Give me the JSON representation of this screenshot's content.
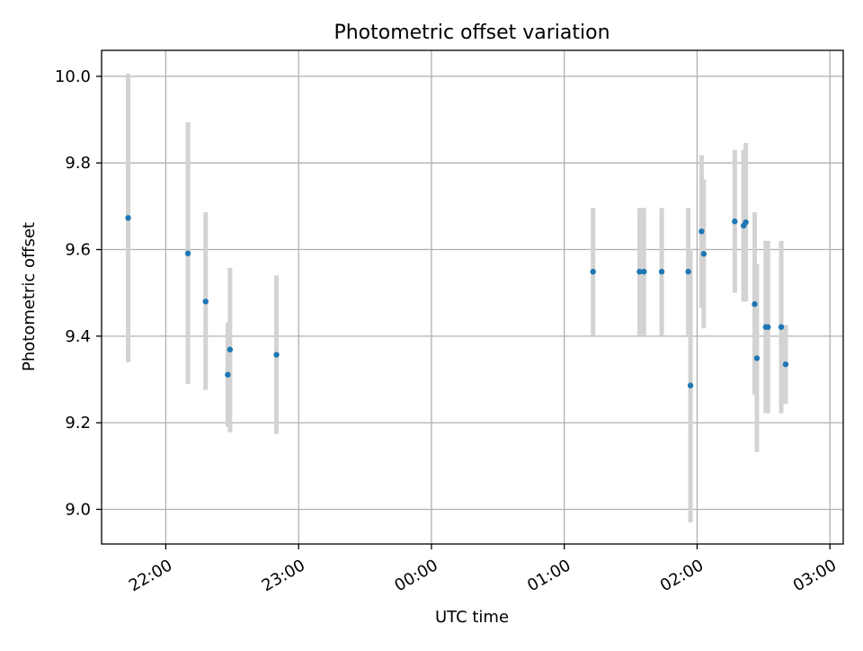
{
  "chart_data": {
    "type": "scatter",
    "title": "Photometric offset variation",
    "xlabel": "UTC time",
    "ylabel": "Photometric offset",
    "xlim": [
      "21:31",
      "03:06"
    ],
    "ylim": [
      8.92,
      10.06
    ],
    "grid": true,
    "marker_color": "#1f77b4",
    "errorbar_color": "#d3d3d3",
    "x_tick_labels": [
      "22:00",
      "23:00",
      "00:00",
      "01:00",
      "02:00",
      "03:00"
    ],
    "y_tick_labels": [
      "9.0",
      "9.2",
      "9.4",
      "9.6",
      "9.8",
      "10.0"
    ],
    "points": [
      {
        "time": "21:43",
        "offset": 9.673,
        "low": 9.34,
        "high": 10.006
      },
      {
        "time": "22:10",
        "offset": 9.591,
        "low": 9.29,
        "high": 9.894
      },
      {
        "time": "22:18",
        "offset": 9.48,
        "low": 9.276,
        "high": 9.686
      },
      {
        "time": "22:28",
        "offset": 9.311,
        "low": 9.19,
        "high": 9.432
      },
      {
        "time": "22:29",
        "offset": 9.369,
        "low": 9.178,
        "high": 9.558
      },
      {
        "time": "22:50",
        "offset": 9.357,
        "low": 9.174,
        "high": 9.54
      },
      {
        "time": "01:13",
        "offset": 9.549,
        "low": 9.402,
        "high": 9.696
      },
      {
        "time": "01:34",
        "offset": 9.549,
        "low": 9.402,
        "high": 9.696
      },
      {
        "time": "01:36",
        "offset": 9.549,
        "low": 9.402,
        "high": 9.696
      },
      {
        "time": "01:44",
        "offset": 9.549,
        "low": 9.402,
        "high": 9.696
      },
      {
        "time": "01:56",
        "offset": 9.549,
        "low": 9.402,
        "high": 9.696
      },
      {
        "time": "01:57",
        "offset": 9.286,
        "low": 8.97,
        "high": 9.602
      },
      {
        "time": "02:02",
        "offset": 9.642,
        "low": 9.466,
        "high": 9.818
      },
      {
        "time": "02:03",
        "offset": 9.59,
        "low": 9.418,
        "high": 9.762
      },
      {
        "time": "02:17",
        "offset": 9.665,
        "low": 9.5,
        "high": 9.83
      },
      {
        "time": "02:21",
        "offset": 9.655,
        "low": 9.48,
        "high": 9.83
      },
      {
        "time": "02:22",
        "offset": 9.663,
        "low": 9.48,
        "high": 9.846
      },
      {
        "time": "02:26",
        "offset": 9.474,
        "low": 9.264,
        "high": 9.686
      },
      {
        "time": "02:27",
        "offset": 9.349,
        "low": 9.132,
        "high": 9.566
      },
      {
        "time": "02:31",
        "offset": 9.421,
        "low": 9.222,
        "high": 9.62
      },
      {
        "time": "02:32",
        "offset": 9.421,
        "low": 9.222,
        "high": 9.62
      },
      {
        "time": "02:38",
        "offset": 9.421,
        "low": 9.222,
        "high": 9.62
      },
      {
        "time": "02:40",
        "offset": 9.335,
        "low": 9.244,
        "high": 9.426
      }
    ]
  }
}
